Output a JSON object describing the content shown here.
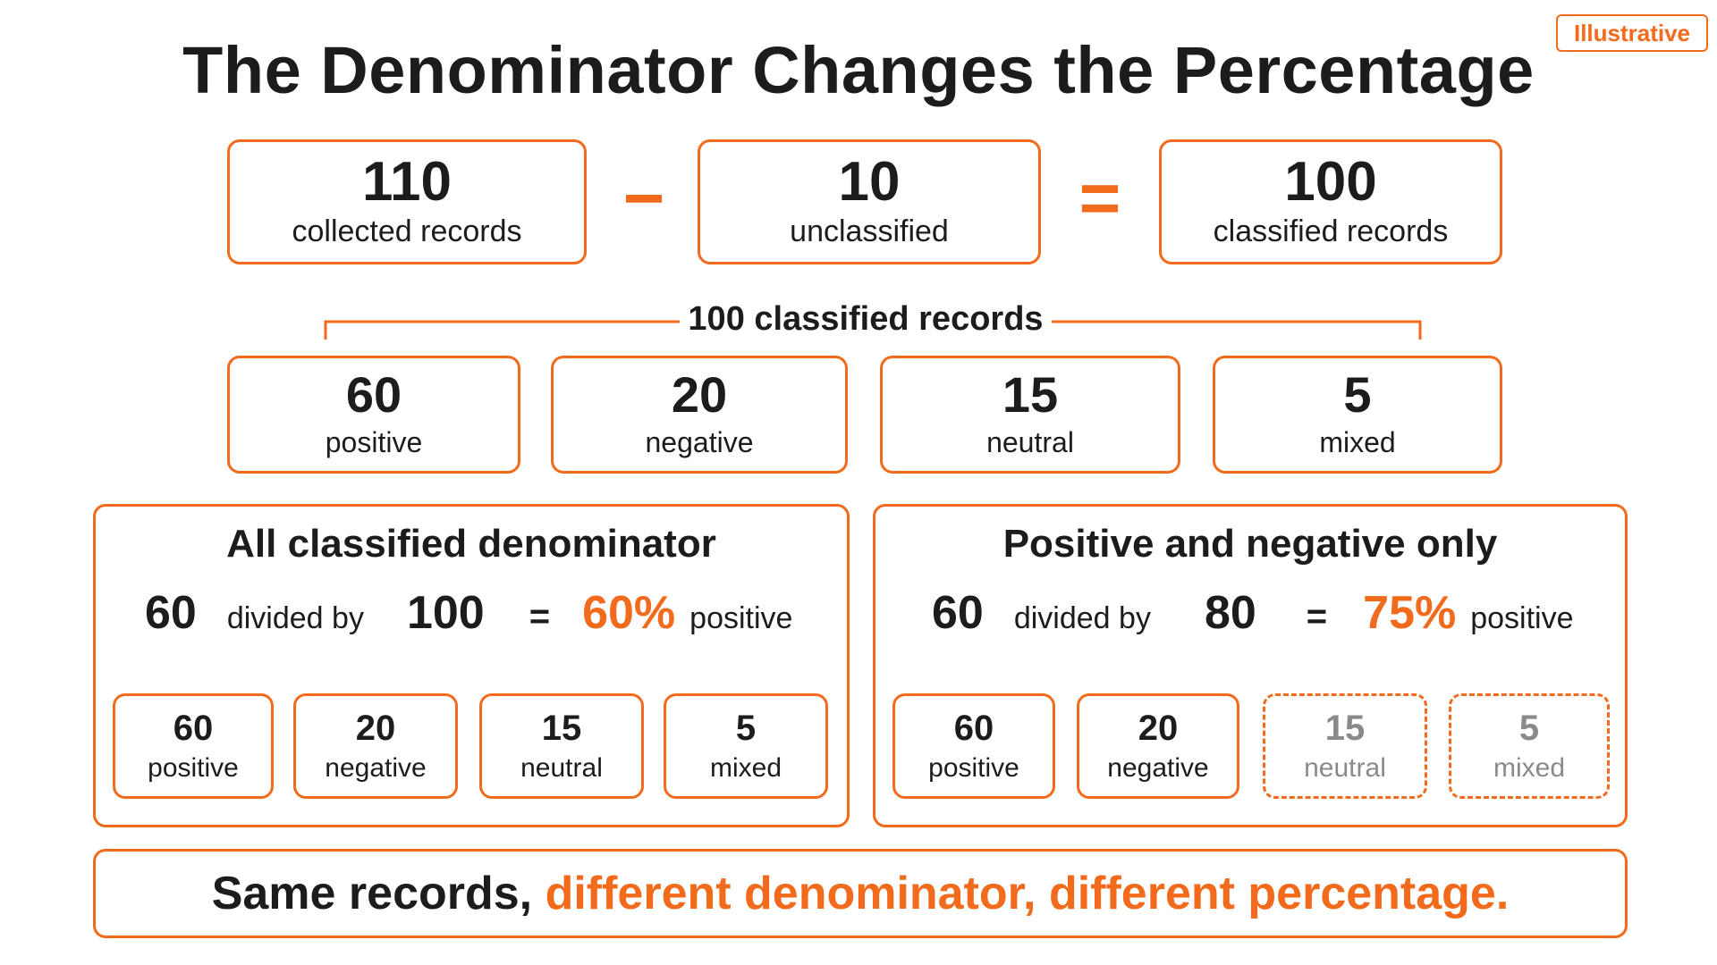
{
  "badge": "Illustrative",
  "title": "The Denominator Changes the Percentage",
  "equation": {
    "collected": {
      "value": "110",
      "label": "collected records"
    },
    "minus": "−",
    "unclassified": {
      "value": "10",
      "label": "unclassified"
    },
    "equals": "=",
    "classified": {
      "value": "100",
      "label": "classified records"
    }
  },
  "breakdown": {
    "header": "100 classified records",
    "categories": [
      {
        "value": "60",
        "label": "positive"
      },
      {
        "value": "20",
        "label": "negative"
      },
      {
        "value": "15",
        "label": "neutral"
      },
      {
        "value": "5",
        "label": "mixed"
      }
    ]
  },
  "left_panel": {
    "title": "All classified denominator",
    "numerator": "60",
    "divided_by": "divided by",
    "denominator": "100",
    "equals": "=",
    "percent": "60%",
    "suffix": "positive",
    "items": [
      {
        "value": "60",
        "label": "positive"
      },
      {
        "value": "20",
        "label": "negative"
      },
      {
        "value": "15",
        "label": "neutral"
      },
      {
        "value": "5",
        "label": "mixed"
      }
    ]
  },
  "right_panel": {
    "title": "Positive and negative only",
    "numerator": "60",
    "divided_by": "divided by",
    "denominator": "80",
    "equals": "=",
    "percent": "75%",
    "suffix": "positive",
    "items": [
      {
        "value": "60",
        "label": "positive"
      },
      {
        "value": "20",
        "label": "negative"
      },
      {
        "value": "15",
        "label": "neutral"
      },
      {
        "value": "5",
        "label": "mixed"
      }
    ]
  },
  "conclusion": {
    "plain": "Same records, ",
    "highlight": "different denominator, different percentage."
  },
  "colors": {
    "accent": "#f26a1b",
    "text": "#1c1c1c",
    "muted": "#8a8a8a"
  }
}
